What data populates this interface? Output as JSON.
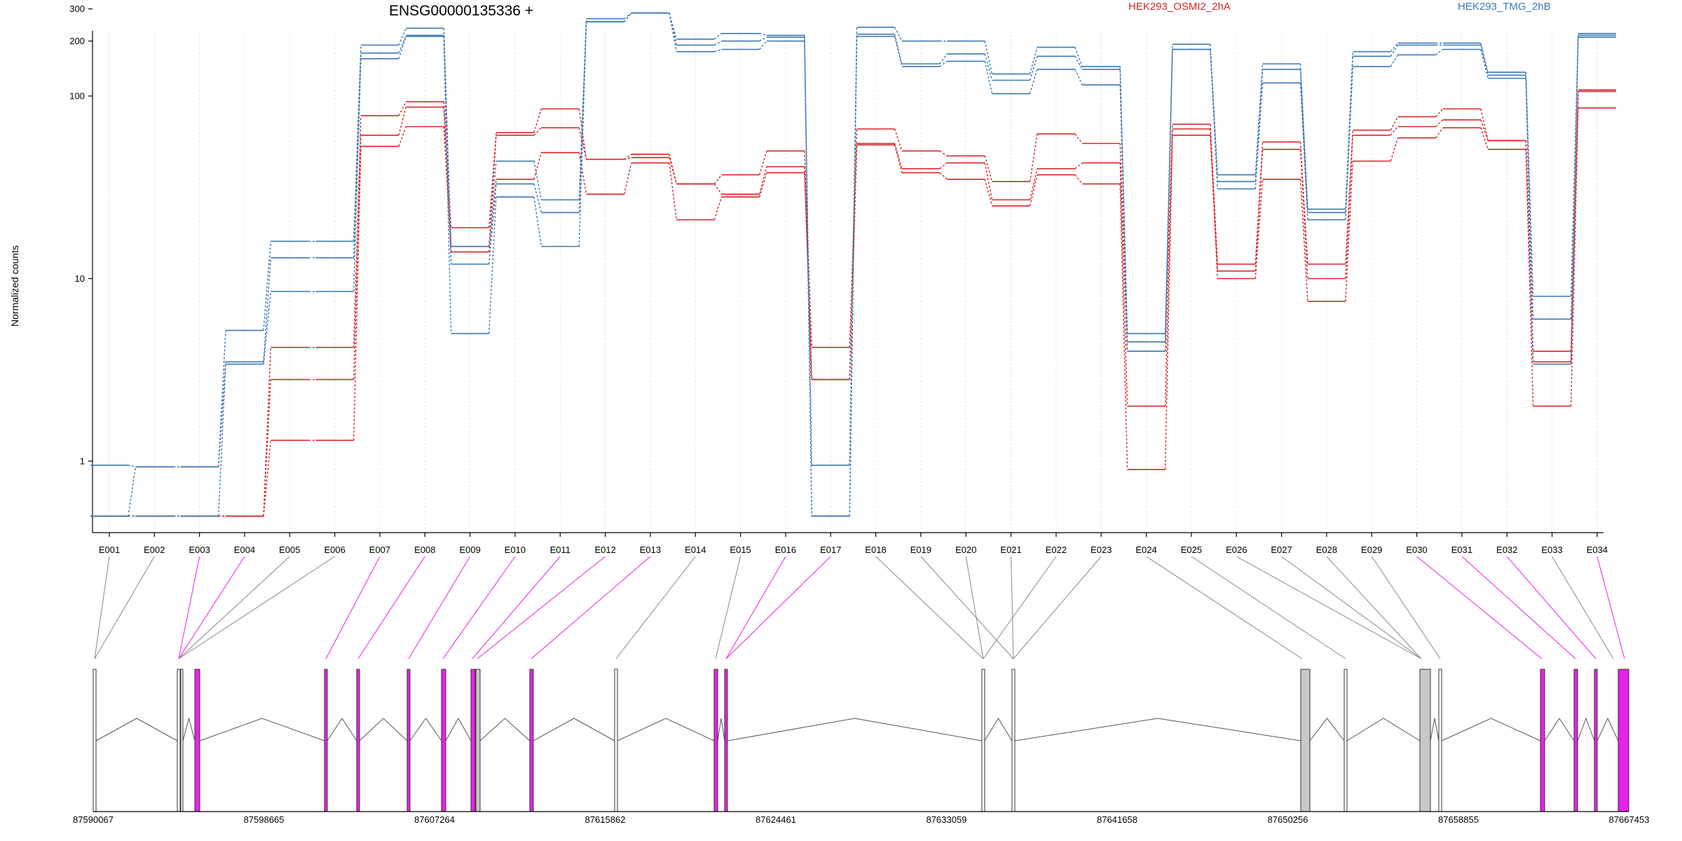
{
  "chart_data": {
    "type": "line",
    "title": "ENSG00000135336 +",
    "ylabel": "Normalized counts",
    "xlabel": "",
    "y_scale": "log",
    "ylim": [
      0.5,
      400
    ],
    "y_ticks": [
      "1",
      "10",
      "100",
      "200",
      "300"
    ],
    "y_tick_values": [
      1,
      10,
      100,
      200,
      300
    ],
    "categories": [
      "E001",
      "E002",
      "E003",
      "E004",
      "E005",
      "E006",
      "E007",
      "E008",
      "E009",
      "E010",
      "E011",
      "E012",
      "E013",
      "E014",
      "E015",
      "E016",
      "E017",
      "E018",
      "E019",
      "E020",
      "E021",
      "E022",
      "E023",
      "E024",
      "E025",
      "E026",
      "E027",
      "E028",
      "E029",
      "E030",
      "E031",
      "E032",
      "E033",
      "E034"
    ],
    "legend": [
      "HEK293_OSMI2_2hA",
      "HEK293_TMG_2hB"
    ],
    "legend_placement": "top",
    "colors": {
      "HEK293_OSMI2_2hA": "#d62728",
      "HEK293_TMG_2hB": "#3c78b4"
    },
    "series": [
      {
        "group": "HEK293_OSMI2_2hA",
        "values": [
          0.5,
          0.5,
          0.5,
          0.5,
          4.2,
          4.2,
          78,
          93,
          19,
          63,
          85,
          45,
          48,
          33,
          37,
          50,
          4.2,
          66,
          50,
          47,
          34,
          62,
          55,
          4,
          70,
          12,
          56,
          12,
          65,
          77,
          85,
          57,
          4,
          108
        ]
      },
      {
        "group": "HEK293_OSMI2_2hA",
        "values": [
          0.5,
          0.5,
          0.5,
          0.5,
          2.8,
          2.8,
          61,
          87,
          15,
          61,
          67,
          45,
          46,
          33,
          29,
          41,
          2.8,
          55,
          40,
          43,
          27,
          40,
          43,
          2,
          66,
          11,
          51,
          10,
          61,
          68,
          74,
          57,
          3.5,
          106
        ]
      },
      {
        "group": "HEK293_OSMI2_2hA",
        "values": [
          0.5,
          0.5,
          0.5,
          0.5,
          1.3,
          1.3,
          53,
          68,
          14,
          35,
          49,
          29,
          43,
          21,
          28,
          38,
          2.8,
          54,
          38,
          35,
          25,
          37,
          33,
          0.9,
          61,
          10,
          35,
          7.5,
          44,
          59,
          67,
          51,
          2,
          86
        ]
      },
      {
        "group": "HEK293_TMG_2hB",
        "values": [
          0.95,
          0.93,
          0.93,
          5.2,
          16,
          16,
          190,
          235,
          15,
          44,
          27,
          265,
          285,
          205,
          220,
          215,
          0.95,
          238,
          200,
          200,
          132,
          185,
          145,
          5,
          192,
          37,
          150,
          24,
          175,
          195,
          195,
          135,
          8,
          220
        ]
      },
      {
        "group": "HEK293_TMG_2hB",
        "values": [
          0.5,
          0.93,
          0.93,
          3.5,
          13,
          13,
          172,
          215,
          12,
          33,
          23,
          255,
          285,
          190,
          200,
          210,
          0.5,
          218,
          150,
          170,
          122,
          165,
          140,
          4.5,
          180,
          34,
          140,
          23,
          165,
          190,
          190,
          130,
          6,
          215
        ]
      },
      {
        "group": "HEK293_TMG_2hB",
        "values": [
          0.5,
          0.5,
          0.5,
          3.4,
          8.5,
          8.5,
          160,
          212,
          5,
          28,
          15,
          255,
          285,
          175,
          180,
          200,
          0.5,
          212,
          145,
          155,
          103,
          140,
          115,
          4,
          180,
          31,
          118,
          21,
          145,
          168,
          180,
          125,
          3.4,
          210
        ]
      }
    ],
    "gene_model": {
      "coordinates": [
        "87590067",
        "87598665",
        "87607264",
        "87615862",
        "87624461",
        "87633059",
        "87641658",
        "87650256",
        "87658855",
        "87667453"
      ],
      "exon_colors": {
        "differential": "#e822e8",
        "not_significant": "#c8c8c8",
        "not_tested": "#ffffff"
      }
    }
  }
}
